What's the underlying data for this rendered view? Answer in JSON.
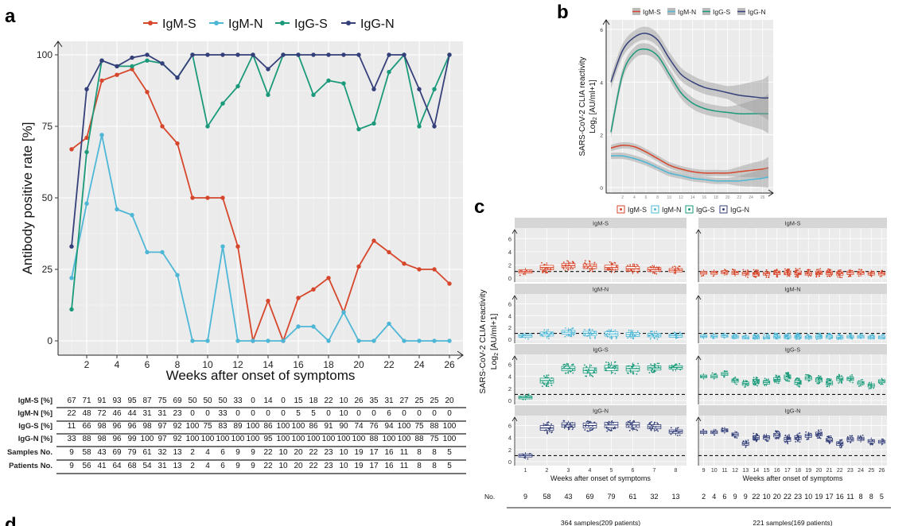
{
  "panel_labels": {
    "a": "a",
    "b": "b",
    "c": "c",
    "d": "d"
  },
  "colors": {
    "IgM-S": "#d6472c",
    "IgM-N": "#4eb7d6",
    "IgG-S": "#1a9a7a",
    "IgG-N": "#35407a"
  },
  "chart_data": [
    {
      "id": "a",
      "type": "line",
      "xlabel": "Weeks after onset of symptoms",
      "ylabel": "Antibody positive rate [%]",
      "x": [
        1,
        2,
        3,
        4,
        5,
        6,
        7,
        8,
        9,
        10,
        11,
        12,
        13,
        14,
        15,
        16,
        17,
        18,
        19,
        20,
        21,
        22,
        23,
        24,
        25,
        26
      ],
      "xticks": [
        2,
        4,
        6,
        8,
        10,
        12,
        14,
        16,
        18,
        20,
        22,
        24,
        26
      ],
      "yticks": [
        0,
        25,
        50,
        75,
        100
      ],
      "ylim": [
        0,
        100
      ],
      "legend_position": "top",
      "series": [
        {
          "name": "IgM-S",
          "values": [
            67,
            71,
            91,
            93,
            95,
            87,
            75,
            69,
            50,
            50,
            50,
            33,
            0,
            14,
            0,
            15,
            18,
            22,
            10,
            26,
            35,
            31,
            27,
            25,
            25,
            20
          ]
        },
        {
          "name": "IgM-N",
          "values": [
            22,
            48,
            72,
            46,
            44,
            31,
            31,
            23,
            0,
            0,
            33,
            0,
            0,
            0,
            0,
            5,
            5,
            0,
            10,
            0,
            0,
            6,
            0,
            0,
            0,
            0
          ]
        },
        {
          "name": "IgG-S",
          "values": [
            11,
            66,
            98,
            96,
            96,
            98,
            97,
            92,
            100,
            75,
            83,
            89,
            100,
            86,
            100,
            100,
            86,
            91,
            90,
            74,
            76,
            94,
            100,
            75,
            88,
            100
          ]
        },
        {
          "name": "IgG-N",
          "values": [
            33,
            88,
            98,
            96,
            99,
            100,
            97,
            92,
            100,
            100,
            100,
            100,
            100,
            95,
            100,
            100,
            100,
            100,
            100,
            100,
            88,
            100,
            100,
            88,
            75,
            100
          ]
        }
      ],
      "table": {
        "rows": [
          {
            "label": "IgM-S [%]",
            "values": [
              "67",
              "71",
              "91",
              "93",
              "95",
              "87",
              "75",
              "69",
              "50",
              "50",
              "50",
              "33",
              "0",
              "14",
              "0",
              "15",
              "18",
              "22",
              "10",
              "26",
              "35",
              "31",
              "27",
              "25",
              "25",
              "20"
            ]
          },
          {
            "label": "IgM-N [%]",
            "values": [
              "22",
              "48",
              "72",
              "46",
              "44",
              "31",
              "31",
              "23",
              "0",
              "0",
              "33",
              "0",
              "0",
              "0",
              "0",
              "5",
              "5",
              "0",
              "10",
              "0",
              "0",
              "6",
              "0",
              "0",
              "0",
              "0"
            ]
          },
          {
            "label": "IgG-S [%]",
            "values": [
              "11",
              "66",
              "98",
              "96",
              "96",
              "98",
              "97",
              "92",
              "100",
              "75",
              "83",
              "89",
              "100",
              "86",
              "100",
              "100",
              "86",
              "91",
              "90",
              "74",
              "76",
              "94",
              "100",
              "75",
              "88",
              "100"
            ]
          },
          {
            "label": "IgG-N [%]",
            "values": [
              "33",
              "88",
              "98",
              "96",
              "99",
              "100",
              "97",
              "92",
              "100",
              "100",
              "100",
              "100",
              "100",
              "95",
              "100",
              "100",
              "100",
              "100",
              "100",
              "100",
              "88",
              "100",
              "100",
              "88",
              "75",
              "100"
            ]
          },
          {
            "label": "Samples No.",
            "values": [
              "9",
              "58",
              "43",
              "69",
              "79",
              "61",
              "32",
              "13",
              "2",
              "4",
              "6",
              "9",
              "9",
              "22",
              "10",
              "20",
              "22",
              "23",
              "10",
              "19",
              "17",
              "16",
              "11",
              "8",
              "8",
              "5"
            ]
          },
          {
            "label": "Patients No.",
            "values": [
              "9",
              "56",
              "41",
              "64",
              "68",
              "54",
              "31",
              "13",
              "2",
              "4",
              "6",
              "9",
              "9",
              "22",
              "10",
              "20",
              "22",
              "23",
              "10",
              "19",
              "17",
              "16",
              "11",
              "8",
              "8",
              "5"
            ]
          }
        ]
      }
    },
    {
      "id": "b",
      "type": "area",
      "ylabel_line1": "SARS-CoV-2 CLIA reactivity",
      "ylabel_line2": "Log",
      "ylabel_sub": "2",
      "ylabel_rest": " [AU/ml+1]",
      "yticks": [
        0,
        2,
        4,
        6
      ],
      "ylim": [
        0,
        6.2
      ],
      "xlim": [
        0,
        27
      ],
      "legend_position": "top",
      "series": [
        {
          "name": "IgM-S",
          "x": [
            0,
            2,
            4,
            6,
            8,
            10,
            12,
            14,
            16,
            18,
            20,
            22,
            24,
            26,
            27
          ],
          "values": [
            1.5,
            1.6,
            1.55,
            1.35,
            1.1,
            0.85,
            0.7,
            0.6,
            0.55,
            0.55,
            0.55,
            0.6,
            0.65,
            0.7,
            0.75
          ],
          "band": 0.12
        },
        {
          "name": "IgM-N",
          "x": [
            0,
            2,
            4,
            6,
            8,
            10,
            12,
            14,
            16,
            18,
            20,
            22,
            24,
            26,
            27
          ],
          "values": [
            1.2,
            1.2,
            1.1,
            0.95,
            0.75,
            0.55,
            0.45,
            0.35,
            0.3,
            0.25,
            0.25,
            0.25,
            0.3,
            0.35,
            0.4
          ],
          "band": 0.12
        },
        {
          "name": "IgG-S",
          "x": [
            0,
            2,
            4,
            6,
            8,
            10,
            12,
            14,
            16,
            18,
            20,
            22,
            24,
            26,
            27
          ],
          "values": [
            2.1,
            4.3,
            5.1,
            5.25,
            5.0,
            4.3,
            3.6,
            3.2,
            3.0,
            2.9,
            2.85,
            2.8,
            2.8,
            2.8,
            2.8
          ],
          "band": 0.22
        },
        {
          "name": "IgG-N",
          "x": [
            0,
            2,
            4,
            6,
            8,
            10,
            12,
            14,
            16,
            18,
            20,
            22,
            24,
            26,
            27
          ],
          "values": [
            4.0,
            5.2,
            5.7,
            5.85,
            5.6,
            4.9,
            4.3,
            4.0,
            3.8,
            3.7,
            3.6,
            3.5,
            3.45,
            3.4,
            3.4
          ],
          "band": 0.25
        }
      ]
    },
    {
      "id": "c",
      "type": "box",
      "ylabel_line1": "SARS-CoV-2 CLIA reactivity",
      "ylabel_line2": "Log",
      "ylabel_sub": "2",
      "ylabel_rest": " [AU/ml+1]",
      "xlabel": "Weeks after onset of symptoms",
      "yticks": [
        0,
        2,
        4,
        6
      ],
      "ylim": [
        0,
        7
      ],
      "cutoff": 1.0,
      "legend_position": "top",
      "panels": [
        "IgM-S",
        "IgM-N",
        "IgG-S",
        "IgG-N"
      ],
      "left": {
        "weeks": [
          "1",
          "2",
          "3",
          "4",
          "5",
          "6",
          "7",
          "8"
        ],
        "counts": [
          "9",
          "58",
          "43",
          "69",
          "79",
          "61",
          "32",
          "13"
        ],
        "footer": "364 samples(209 patients)",
        "median": {
          "IgM-S": [
            1.0,
            1.6,
            1.9,
            1.8,
            1.6,
            1.4,
            1.3,
            1.2
          ],
          "IgM-N": [
            0.6,
            0.9,
            1.2,
            1.0,
            0.9,
            0.8,
            0.7,
            0.6
          ],
          "IgG-S": [
            0.5,
            3.3,
            5.3,
            5.0,
            5.4,
            5.3,
            5.4,
            5.5
          ],
          "IgG-N": [
            1.0,
            5.6,
            6.1,
            6.0,
            6.1,
            6.1,
            5.8,
            5.0
          ]
        }
      },
      "right": {
        "weeks": [
          "9",
          "10",
          "11",
          "12",
          "13",
          "14",
          "15",
          "16",
          "17",
          "18",
          "19",
          "20",
          "21",
          "22",
          "23",
          "24",
          "25",
          "26"
        ],
        "counts": [
          "2",
          "4",
          "6",
          "9",
          "9",
          "22",
          "10",
          "20",
          "22",
          "23",
          "10",
          "19",
          "17",
          "16",
          "11",
          "8",
          "8",
          "5"
        ],
        "footer": "221 samples(169 patients)",
        "median": {
          "IgM-S": [
            0.8,
            0.8,
            0.9,
            0.8,
            0.7,
            0.6,
            0.7,
            0.8,
            0.8,
            0.8,
            0.7,
            0.8,
            0.8,
            0.7,
            0.8,
            0.8,
            0.7,
            0.7
          ],
          "IgM-N": [
            0.5,
            0.5,
            0.6,
            0.4,
            0.3,
            0.3,
            0.3,
            0.4,
            0.4,
            0.4,
            0.3,
            0.4,
            0.4,
            0.3,
            0.4,
            0.4,
            0.3,
            0.3
          ],
          "IgG-S": [
            4.0,
            4.0,
            4.4,
            3.3,
            2.8,
            3.2,
            3.0,
            3.5,
            3.9,
            3.0,
            3.7,
            3.4,
            2.9,
            3.6,
            3.6,
            2.9,
            2.5,
            3.2
          ],
          "IgG-N": [
            4.9,
            4.9,
            5.2,
            4.5,
            3.0,
            4.0,
            4.0,
            4.4,
            3.7,
            4.0,
            4.3,
            4.6,
            3.6,
            3.0,
            3.7,
            3.8,
            3.4,
            3.3
          ]
        }
      },
      "count_label": "No."
    }
  ]
}
